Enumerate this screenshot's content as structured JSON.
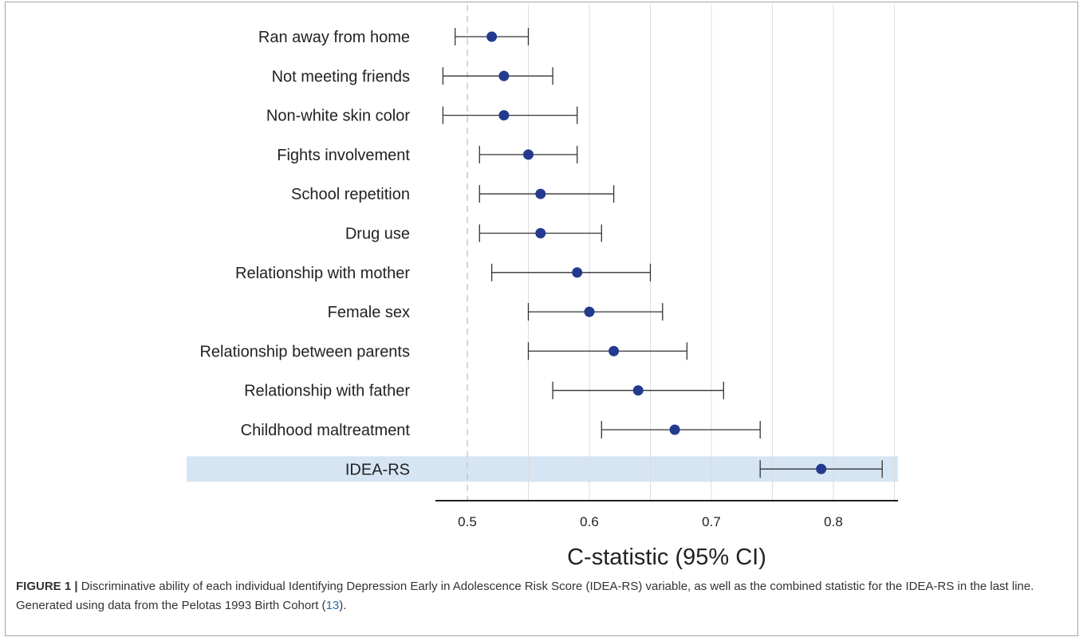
{
  "chart_data": {
    "type": "forest",
    "xlabel": "C-statistic (95% CI)",
    "xlim": [
      0.48,
      0.85
    ],
    "xticks": [
      0.5,
      0.6,
      0.7,
      0.8
    ],
    "xtick_labels": [
      "0.5",
      "0.6",
      "0.7",
      "0.8"
    ],
    "reference_line": 0.5,
    "grid": "vertical",
    "point_color": "#233a8f",
    "highlight_color": "#d6e5f3",
    "highlighted_row": "IDEA-RS",
    "rows": [
      {
        "label": "Ran away from home",
        "estimate": 0.52,
        "lower": 0.49,
        "upper": 0.55
      },
      {
        "label": "Not meeting friends",
        "estimate": 0.53,
        "lower": 0.48,
        "upper": 0.57
      },
      {
        "label": "Non-white skin color",
        "estimate": 0.53,
        "lower": 0.48,
        "upper": 0.59
      },
      {
        "label": "Fights involvement",
        "estimate": 0.55,
        "lower": 0.51,
        "upper": 0.59
      },
      {
        "label": "School repetition",
        "estimate": 0.56,
        "lower": 0.51,
        "upper": 0.62
      },
      {
        "label": "Drug use",
        "estimate": 0.56,
        "lower": 0.51,
        "upper": 0.61
      },
      {
        "label": "Relationship with mother",
        "estimate": 0.59,
        "lower": 0.52,
        "upper": 0.65
      },
      {
        "label": "Female sex",
        "estimate": 0.6,
        "lower": 0.55,
        "upper": 0.66
      },
      {
        "label": "Relationship between parents",
        "estimate": 0.62,
        "lower": 0.55,
        "upper": 0.68
      },
      {
        "label": "Relationship with father",
        "estimate": 0.64,
        "lower": 0.57,
        "upper": 0.71
      },
      {
        "label": "Childhood maltreatment",
        "estimate": 0.67,
        "lower": 0.61,
        "upper": 0.74
      },
      {
        "label": "IDEA-RS",
        "estimate": 0.79,
        "lower": 0.74,
        "upper": 0.84
      }
    ]
  },
  "caption": {
    "figure_label": "FIGURE 1 |",
    "text_before_ref": " Discriminative ability of each individual Identifying Depression Early in Adolescence Risk Score (IDEA-RS) variable, as well as the combined statistic for the IDEA-RS in the last line. Generated using data from the Pelotas 1993 Birth Cohort (",
    "ref": "13",
    "text_after_ref": ")."
  }
}
